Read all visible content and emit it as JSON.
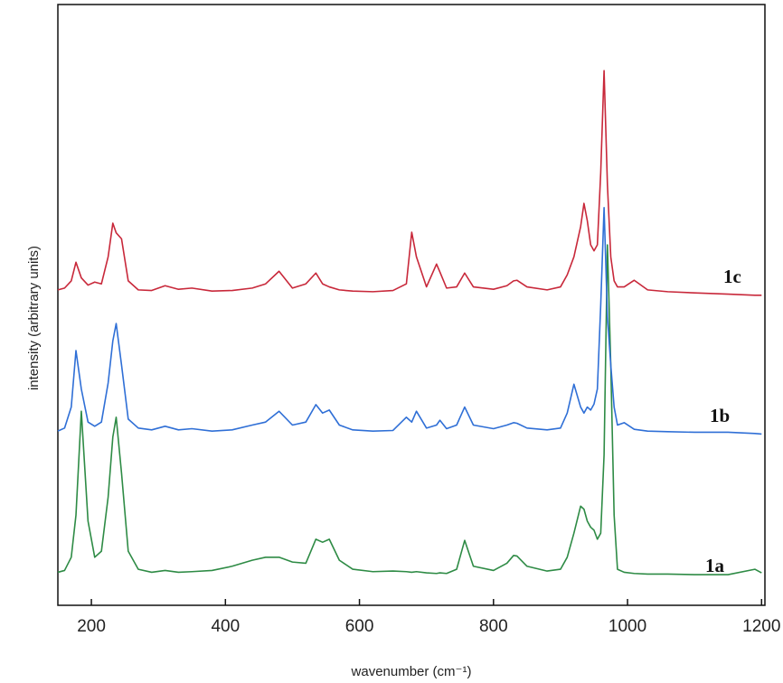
{
  "chart_data": {
    "type": "line",
    "xlabel": "wavenumber (cm⁻¹)",
    "ylabel": "intensity (arbitrary units)",
    "xlim": [
      150,
      1205
    ],
    "ylim": [
      0,
      100
    ],
    "xticks": [
      200,
      400,
      600,
      800,
      1000,
      1200
    ],
    "x": [
      150,
      160,
      170,
      177,
      185,
      195,
      205,
      215,
      225,
      232,
      237,
      245,
      255,
      270,
      290,
      310,
      330,
      350,
      380,
      410,
      440,
      460,
      480,
      500,
      520,
      535,
      545,
      555,
      570,
      590,
      620,
      650,
      670,
      678,
      685,
      700,
      715,
      720,
      730,
      745,
      757,
      770,
      800,
      820,
      830,
      835,
      850,
      880,
      900,
      910,
      920,
      930,
      935,
      940,
      945,
      950,
      955,
      960,
      965,
      970,
      975,
      980,
      985,
      995,
      1010,
      1030,
      1060,
      1100,
      1150,
      1190,
      1200
    ],
    "series": [
      {
        "name": "1a",
        "color": "#2e8b45",
        "values": [
          5.5,
          5.8,
          8,
          15,
          32.3,
          14,
          8,
          9,
          18,
          28,
          31.3,
          22,
          9,
          6,
          5.5,
          5.8,
          5.5,
          5.6,
          5.8,
          6.5,
          7.5,
          8,
          8,
          7.2,
          7,
          11,
          10.5,
          11,
          7.5,
          6,
          5.6,
          5.7,
          5.6,
          5.5,
          5.6,
          5.4,
          5.3,
          5.4,
          5.3,
          6,
          10.8,
          6.5,
          5.8,
          7,
          8.3,
          8.2,
          6.5,
          5.7,
          6,
          8,
          12,
          16.5,
          16,
          14,
          13,
          12.5,
          11,
          12,
          25,
          60,
          40,
          15,
          6,
          5.5,
          5.3,
          5.2,
          5.2,
          5.1,
          5.1,
          6,
          5.4
        ]
      },
      {
        "name": "1b",
        "color": "#2f6fd6",
        "values": [
          29,
          29.5,
          33,
          42.4,
          36,
          30.5,
          29.8,
          30.5,
          37,
          44,
          46.9,
          40,
          31,
          29.5,
          29.2,
          29.8,
          29.2,
          29.4,
          29,
          29.2,
          30,
          30.5,
          32.3,
          30,
          30.5,
          33.4,
          32,
          32.5,
          30,
          29.2,
          29,
          29.1,
          31.3,
          30.5,
          32.3,
          29.5,
          30,
          30.8,
          29.4,
          30,
          33,
          30,
          29.4,
          30,
          30.4,
          30.3,
          29.5,
          29.2,
          29.5,
          32,
          36.8,
          33,
          32,
          33,
          32.5,
          33.5,
          36,
          50,
          66.2,
          48,
          40,
          33,
          30,
          30.4,
          29.3,
          29,
          28.9,
          28.8,
          28.8,
          28.6,
          28.5
        ]
      },
      {
        "name": "1c",
        "color": "#c8283a",
        "values": [
          52.5,
          52.8,
          54,
          57.1,
          54.5,
          53.3,
          53.8,
          53.5,
          58,
          63.6,
          62,
          61,
          54,
          52.5,
          52.4,
          53.2,
          52.6,
          52.8,
          52.3,
          52.4,
          52.8,
          53.5,
          55.6,
          52.8,
          53.5,
          55.3,
          53.5,
          53,
          52.5,
          52.3,
          52.2,
          52.4,
          53.5,
          62.1,
          58,
          53,
          56.8,
          55.5,
          52.8,
          53,
          55.3,
          53,
          52.6,
          53.2,
          54,
          54.1,
          53,
          52.5,
          53,
          55,
          58,
          63,
          66.9,
          64,
          60,
          59,
          60,
          72,
          89,
          70,
          58,
          54,
          53,
          53,
          54.1,
          52.5,
          52.2,
          52,
          51.8,
          51.6,
          51.6
        ]
      }
    ]
  }
}
